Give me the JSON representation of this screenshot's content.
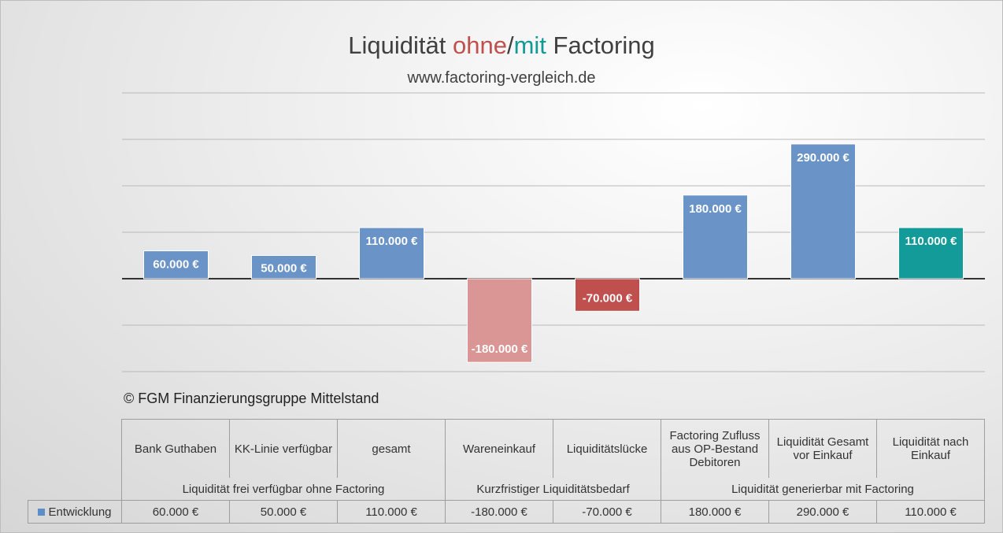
{
  "title": {
    "part1": "Liquidität ",
    "ohne": "ohne",
    "slash": "/",
    "mit": "mit",
    "part2": " Factoring"
  },
  "subtitle": "www.factoring-vergleich.de",
  "copyright": "© FGM Finanzierungsgruppe Mittelstand",
  "colors": {
    "positive": "#6a93c8",
    "negative_light": "#d99694",
    "negative": "#c0504d",
    "result": "#129b98"
  },
  "chart_data": {
    "type": "bar",
    "categories": [
      "Bank Guthaben",
      "KK-Linie verfügbar",
      "gesamt",
      "Wareneinkauf",
      "Liquiditätslücke",
      "Factoring Zufluss aus OP-Bestand Debitoren",
      "Liquidität Gesamt vor Einkauf",
      "Liquidität nach Einkauf"
    ],
    "groups": [
      {
        "label": "Liquidität frei verfügbar ohne Factoring",
        "span": 3
      },
      {
        "label": "Kurzfristiger Liquiditätsbedarf",
        "span": 2
      },
      {
        "label": "Liquidität generierbar mit Factoring",
        "span": 3
      }
    ],
    "series": [
      {
        "name": "Entwicklung",
        "values": [
          60000,
          50000,
          110000,
          -180000,
          -70000,
          180000,
          290000,
          110000
        ],
        "labels": [
          "60.000 €",
          "50.000 €",
          "110.000 €",
          "-180.000 €",
          "-70.000 €",
          "180.000 €",
          "290.000 €",
          "110.000 €"
        ],
        "colors": [
          "#6a93c8",
          "#6a93c8",
          "#6a93c8",
          "#d99694",
          "#c0504d",
          "#6a93c8",
          "#6a93c8",
          "#129b98"
        ]
      }
    ],
    "ylim": [
      -200000,
      400000
    ],
    "grid": true,
    "legend": "data-table"
  }
}
